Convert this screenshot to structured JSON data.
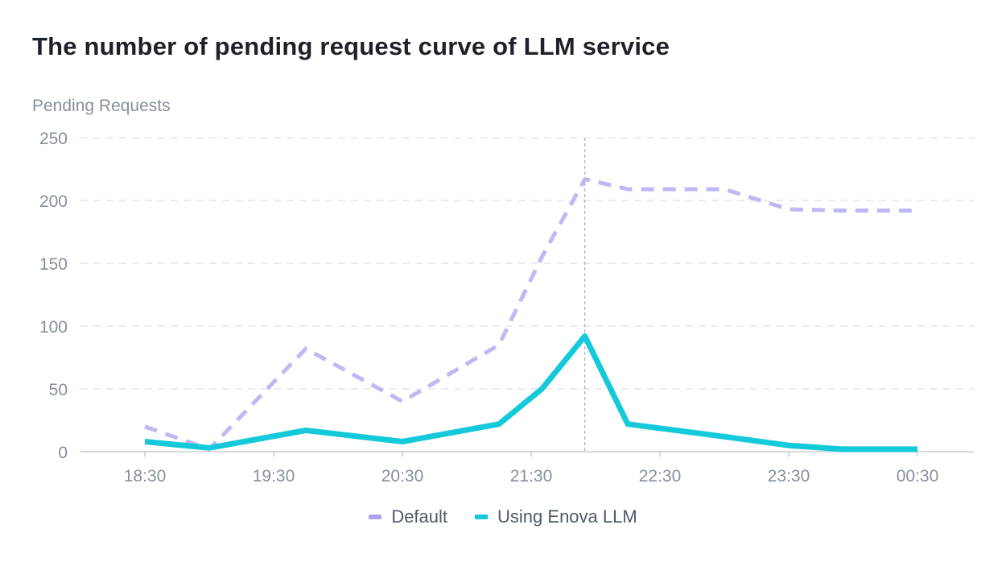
{
  "title": "The number of pending request curve of LLM service",
  "chart_data": {
    "type": "line",
    "ylabel": "Pending Requests",
    "xlabel": "",
    "ylim": [
      0,
      250
    ],
    "yticks": [
      "250",
      "200",
      "150",
      "100",
      "50",
      "0"
    ],
    "xtick_labels": [
      "18:30",
      "19:30",
      "20:30",
      "21:30",
      "22:30",
      "23:30",
      "00:30"
    ],
    "x": [
      "18:30",
      "19:00",
      "19:45",
      "20:30",
      "21:15",
      "21:35",
      "21:55",
      "22:15",
      "23:00",
      "23:30",
      "23:55",
      "00:15",
      "00:30"
    ],
    "hover_x": "21:55",
    "series": [
      {
        "name": "Default",
        "color": "#bdb9f5",
        "style": "dashed",
        "values": [
          20,
          2,
          82,
          40,
          85,
          155,
          217,
          209,
          209,
          193,
          192,
          192,
          192
        ]
      },
      {
        "name": "Using Enova LLM",
        "color": "#14c9d9",
        "style": "solid",
        "values": [
          8,
          3,
          17,
          8,
          22,
          50,
          92,
          22,
          12,
          5,
          2,
          2,
          2
        ]
      }
    ],
    "grid": true,
    "legend_position": "bottom-center"
  }
}
